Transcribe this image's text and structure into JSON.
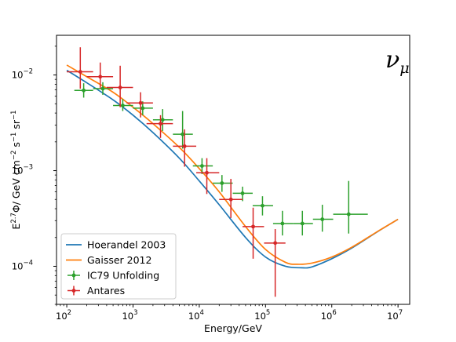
{
  "chart_data": {
    "type": "scatter",
    "title": "",
    "xlabel": "Energy/GeV",
    "ylabel_parts": {
      "e": "E",
      "exp": "2.7",
      "mid": "Φ/ GeV cm",
      "exp2": "−2",
      "s": " s",
      "exp3": "−1",
      "sr": " sr",
      "exp4": "−1"
    },
    "annotation": {
      "main": "ν",
      "sub": "μ"
    },
    "xscale": "log",
    "yscale": "log",
    "xlim": [
      70,
      15000000
    ],
    "ylim": [
      4e-05,
      0.026
    ],
    "x_ticks": [
      {
        "value": 100,
        "base": "10",
        "exp": "2"
      },
      {
        "value": 1000,
        "base": "10",
        "exp": "3"
      },
      {
        "value": 10000,
        "base": "10",
        "exp": "4"
      },
      {
        "value": 100000,
        "base": "10",
        "exp": "5"
      },
      {
        "value": 1000000,
        "base": "10",
        "exp": "6"
      },
      {
        "value": 10000000,
        "base": "10",
        "exp": "7"
      }
    ],
    "y_ticks": [
      {
        "value": 0.0001,
        "base": "10",
        "exp": "−4"
      },
      {
        "value": 0.001,
        "base": "10",
        "exp": "−3"
      },
      {
        "value": 0.01,
        "base": "10",
        "exp": "−2"
      }
    ],
    "legend_position": "lower-left",
    "grid": false,
    "series": [
      {
        "name": "Hoerandel 2003",
        "kind": "line",
        "color": "#1f77b4",
        "x": [
          100,
          200,
          500,
          1000,
          2000,
          5000,
          10000,
          20000,
          50000,
          100000,
          200000,
          350000,
          500000,
          1000000,
          2000000,
          5000000,
          10000000
        ],
        "y": [
          0.0112,
          0.0083,
          0.0055,
          0.0038,
          0.0025,
          0.00135,
          0.00078,
          0.00044,
          0.0002,
          0.000125,
          0.0001,
          9.65e-05,
          9.85e-05,
          0.00012,
          0.000155,
          0.000232,
          0.00031
        ]
      },
      {
        "name": "Gaisser 2012",
        "kind": "line",
        "color": "#ff7f0e",
        "x": [
          100,
          200,
          500,
          1000,
          2000,
          5000,
          10000,
          20000,
          50000,
          100000,
          200000,
          300000,
          500000,
          1000000,
          2000000,
          5000000,
          10000000
        ],
        "y": [
          0.0127,
          0.0096,
          0.0066,
          0.0046,
          0.0031,
          0.00175,
          0.00105,
          0.0006,
          0.00026,
          0.00015,
          0.00011,
          0.000105,
          0.000108,
          0.000125,
          0.000158,
          0.000233,
          0.00031
        ]
      },
      {
        "name": "IC79 Unfolding",
        "kind": "errorbar",
        "color": "#2ca02c",
        "points": [
          {
            "x": 180,
            "y": 0.0069,
            "xlo": 130,
            "xhi": 250,
            "ylo": 0.0058,
            "yhi": 0.0082
          },
          {
            "x": 350,
            "y": 0.0072,
            "xlo": 250,
            "xhi": 500,
            "ylo": 0.0062,
            "yhi": 0.0084
          },
          {
            "x": 700,
            "y": 0.0048,
            "xlo": 500,
            "xhi": 1000,
            "ylo": 0.0042,
            "yhi": 0.0056
          },
          {
            "x": 1400,
            "y": 0.0045,
            "xlo": 1000,
            "xhi": 2000,
            "ylo": 0.0038,
            "yhi": 0.0053
          },
          {
            "x": 2800,
            "y": 0.0034,
            "xlo": 2000,
            "xhi": 4000,
            "ylo": 0.0026,
            "yhi": 0.0044
          },
          {
            "x": 5600,
            "y": 0.0024,
            "xlo": 4000,
            "xhi": 8000,
            "ylo": 0.0017,
            "yhi": 0.0042
          },
          {
            "x": 11000,
            "y": 0.00112,
            "xlo": 8000,
            "xhi": 16000,
            "ylo": 0.00092,
            "yhi": 0.00135
          },
          {
            "x": 22000,
            "y": 0.00074,
            "xlo": 16000,
            "xhi": 32000,
            "ylo": 0.0006,
            "yhi": 0.0009
          },
          {
            "x": 45000,
            "y": 0.00058,
            "xlo": 32000,
            "xhi": 64000,
            "ylo": 0.00048,
            "yhi": 0.00068
          },
          {
            "x": 90000,
            "y": 0.00043,
            "xlo": 64000,
            "xhi": 130000,
            "ylo": 0.00034,
            "yhi": 0.00054
          },
          {
            "x": 180000,
            "y": 0.00028,
            "xlo": 130000,
            "xhi": 260000,
            "ylo": 0.00021,
            "yhi": 0.00038
          },
          {
            "x": 360000,
            "y": 0.00028,
            "xlo": 260000,
            "xhi": 520000,
            "ylo": 0.00021,
            "yhi": 0.00038
          },
          {
            "x": 720000,
            "y": 0.00031,
            "xlo": 520000,
            "xhi": 1050000,
            "ylo": 0.00023,
            "yhi": 0.00044
          },
          {
            "x": 1800000,
            "y": 0.00035,
            "xlo": 1050000,
            "xhi": 3500000,
            "ylo": 0.00022,
            "yhi": 0.00078
          }
        ]
      },
      {
        "name": "Antares",
        "kind": "errorbar",
        "color": "#d62728",
        "points": [
          {
            "x": 160,
            "y": 0.0108,
            "xlo": 100,
            "xhi": 250,
            "ylo": 0.0072,
            "yhi": 0.0195
          },
          {
            "x": 320,
            "y": 0.0096,
            "xlo": 200,
            "xhi": 500,
            "ylo": 0.0072,
            "yhi": 0.0135
          },
          {
            "x": 640,
            "y": 0.0074,
            "xlo": 400,
            "xhi": 1000,
            "ylo": 0.0046,
            "yhi": 0.0125
          },
          {
            "x": 1300,
            "y": 0.0051,
            "xlo": 800,
            "xhi": 2000,
            "ylo": 0.0036,
            "yhi": 0.0066
          },
          {
            "x": 2600,
            "y": 0.0031,
            "xlo": 1600,
            "xhi": 4000,
            "ylo": 0.0022,
            "yhi": 0.0038
          },
          {
            "x": 6000,
            "y": 0.0018,
            "xlo": 4000,
            "xhi": 9000,
            "ylo": 0.0011,
            "yhi": 0.0027
          },
          {
            "x": 13000,
            "y": 0.00095,
            "xlo": 9000,
            "xhi": 20000,
            "ylo": 0.00057,
            "yhi": 0.00135
          },
          {
            "x": 30000,
            "y": 0.0005,
            "xlo": 20000,
            "xhi": 45000,
            "ylo": 0.00032,
            "yhi": 0.00082
          },
          {
            "x": 65000,
            "y": 0.00026,
            "xlo": 45000,
            "xhi": 95000,
            "ylo": 0.00012,
            "yhi": 0.00041
          },
          {
            "x": 140000,
            "y": 0.000175,
            "xlo": 95000,
            "xhi": 200000,
            "ylo": 4.8e-05,
            "yhi": 0.000245
          }
        ]
      }
    ]
  }
}
